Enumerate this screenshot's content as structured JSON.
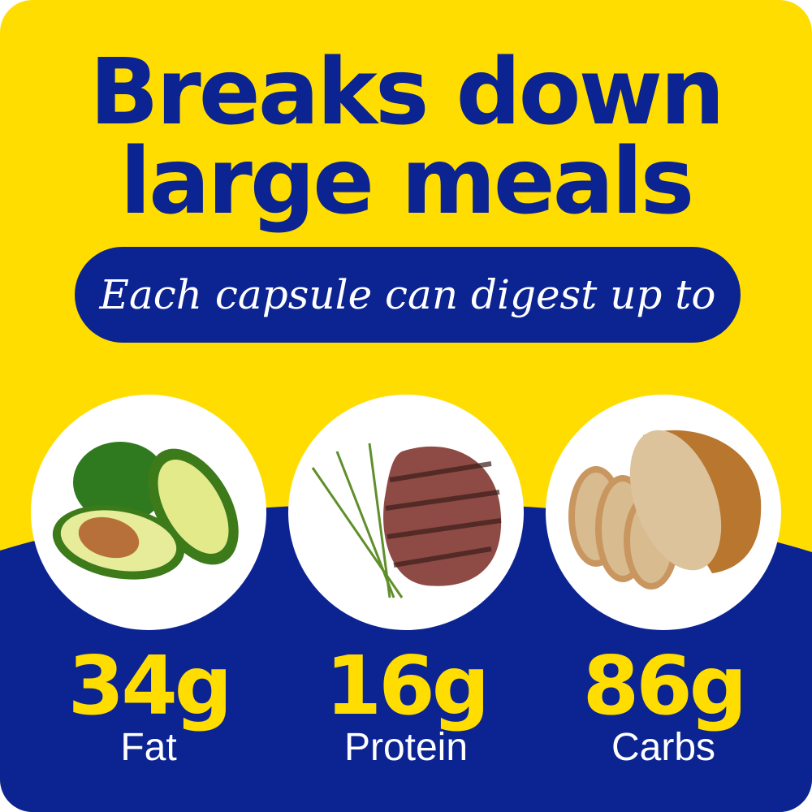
{
  "headline": {
    "line1": "Breaks down",
    "line2": "large meals"
  },
  "subtitle": "Each capsule can digest up to",
  "colors": {
    "yellow": "#FFDD00",
    "blue": "#0C2392",
    "white": "#FFFFFF"
  },
  "nutrients": [
    {
      "amount": "34g",
      "label": "Fat",
      "image": "avocado"
    },
    {
      "amount": "16g",
      "label": "Protein",
      "image": "steak"
    },
    {
      "amount": "86g",
      "label": "Carbs",
      "image": "bread"
    }
  ]
}
